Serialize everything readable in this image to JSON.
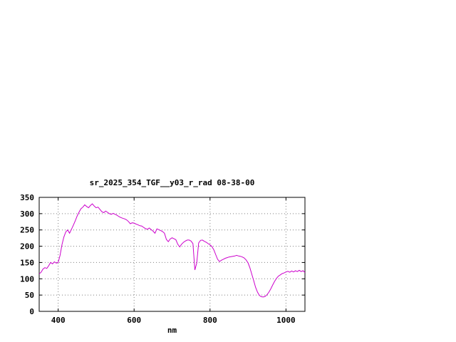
{
  "page": {
    "background_color": "#ffffff"
  },
  "chart_data": {
    "type": "line",
    "title": "sr_2025_354_TGF__y03_r_rad 08-38-00",
    "xlabel": "nm",
    "ylabel": "",
    "xlim": [
      350,
      1050
    ],
    "ylim": [
      0,
      350
    ],
    "xticks": [
      400,
      600,
      800,
      1000
    ],
    "yticks": [
      0,
      50,
      100,
      150,
      200,
      250,
      300,
      350
    ],
    "grid": true,
    "legend_position": "none",
    "line_color": "#cc00cc",
    "border_color": "#000000",
    "grid_color": "#808080",
    "series": [
      {
        "name": "sr_2025_354_TGF__y03_r_rad",
        "x_start": 350,
        "x_step": 5,
        "values": [
          115,
          120,
          130,
          134,
          132,
          140,
          150,
          146,
          152,
          148,
          150,
          172,
          205,
          228,
          244,
          250,
          240,
          252,
          265,
          278,
          293,
          305,
          315,
          320,
          327,
          322,
          318,
          325,
          330,
          323,
          318,
          320,
          313,
          306,
          303,
          308,
          304,
          300,
          298,
          301,
          298,
          295,
          291,
          288,
          286,
          284,
          281,
          276,
          269,
          272,
          271,
          268,
          266,
          263,
          262,
          258,
          254,
          252,
          256,
          251,
          246,
          240,
          253,
          251,
          248,
          245,
          240,
          221,
          214,
          222,
          226,
          223,
          220,
          206,
          198,
          206,
          212,
          216,
          219,
          219,
          216,
          208,
          127,
          148,
          210,
          218,
          219,
          215,
          212,
          208,
          204,
          199,
          189,
          174,
          160,
          153,
          157,
          160,
          163,
          165,
          167,
          168,
          169,
          170,
          172,
          170,
          169,
          167,
          164,
          158,
          149,
          134,
          114,
          94,
          74,
          59,
          49,
          45,
          44,
          46,
          51,
          59,
          69,
          81,
          92,
          101,
          108,
          112,
          116,
          118,
          121,
          123,
          120,
          124,
          121,
          125,
          122,
          126,
          122,
          125,
          119
        ]
      }
    ]
  }
}
